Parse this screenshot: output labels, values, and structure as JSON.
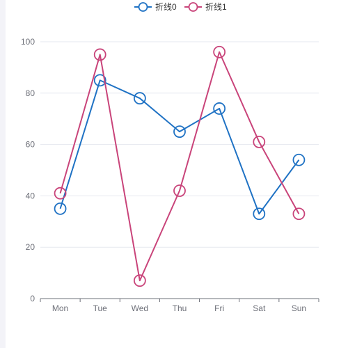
{
  "chart_data": {
    "type": "line",
    "title": "",
    "xlabel": "",
    "ylabel": "",
    "categories": [
      "Mon",
      "Tue",
      "Wed",
      "Thu",
      "Fri",
      "Sat",
      "Sun"
    ],
    "ylim": [
      0,
      100
    ],
    "y_ticks": [
      0,
      20,
      40,
      60,
      80,
      100
    ],
    "grid": true,
    "legend_position": "top-center",
    "series": [
      {
        "name": "折线0",
        "color": "#1f72c4",
        "values": [
          35,
          85,
          78,
          65,
          74,
          33,
          54
        ]
      },
      {
        "name": "折线1",
        "color": "#c9447a",
        "values": [
          41,
          95,
          7,
          42,
          96,
          61,
          33
        ]
      }
    ]
  }
}
